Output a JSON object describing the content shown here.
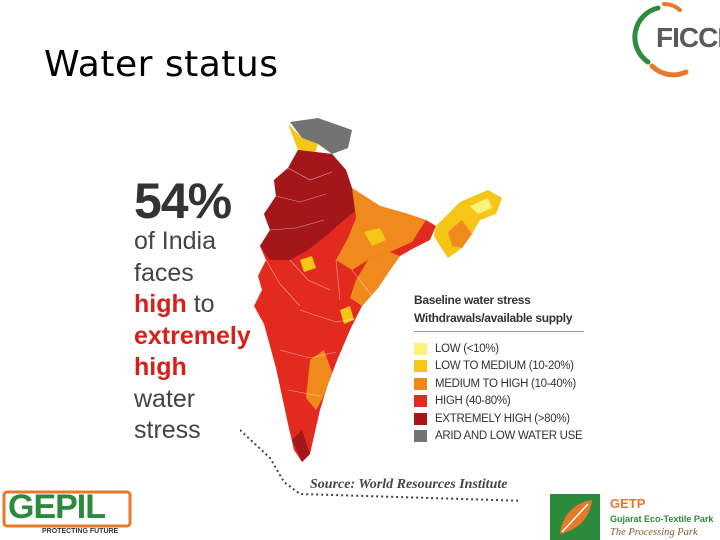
{
  "slide": {
    "title": "Water status"
  },
  "brand_top": {
    "name": "FICCI"
  },
  "stat": {
    "percent": "54%",
    "lines": [
      {
        "text": "of India",
        "highlight": false
      },
      {
        "text": "faces",
        "highlight": false
      },
      {
        "text": "high to",
        "highlight": "partial"
      },
      {
        "text": "extremely",
        "highlight": true
      },
      {
        "text": "high",
        "highlight": true
      },
      {
        "text": "water",
        "highlight": false
      },
      {
        "text": "stress",
        "highlight": false
      }
    ],
    "line3_red": "high",
    "line3_rest": " to"
  },
  "legend": {
    "title_line1": "Baseline water stress",
    "title_line2": "Withdrawals/available supply",
    "items": [
      {
        "label": "LOW (<10%)",
        "color": "#fff27a"
      },
      {
        "label": "LOW TO MEDIUM (10-20%)",
        "color": "#f5c518"
      },
      {
        "label": "MEDIUM TO HIGH (10-40%)",
        "color": "#f08a1c"
      },
      {
        "label": "HIGH (40-80%)",
        "color": "#e22a1e"
      },
      {
        "label": "EXTREMELY HIGH (>80%)",
        "color": "#a3161a"
      },
      {
        "label": "ARID AND LOW WATER USE",
        "color": "#737373"
      }
    ]
  },
  "source": "Source: World Resources Institute",
  "brand_bottom_left": {
    "name": "GEPIL",
    "tagline": "PROTECTING FUTURE"
  },
  "brand_bottom_right": {
    "name": "GETP",
    "subtitle": "Gujarat Eco-Textile Park",
    "tagline": "The Processing Park"
  }
}
